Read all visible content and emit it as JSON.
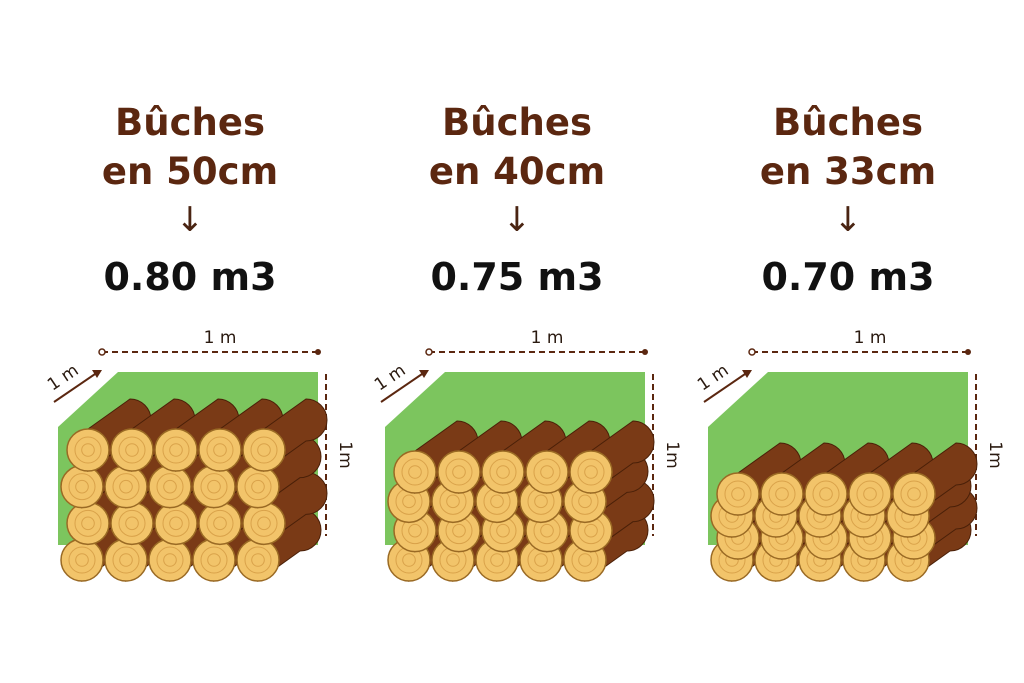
{
  "panels": [
    {
      "title_line1": "Bûches",
      "title_line2": "en 50cm",
      "arrow": "down-arrow-icon",
      "value": "0.80 m3",
      "volume_m3": 0.8,
      "rows": 4,
      "logs_per_row": 5
    },
    {
      "title_line1": "Bûches",
      "title_line2": "en 40cm",
      "arrow": "down-arrow-icon",
      "value": "0.75 m3",
      "volume_m3": 0.75,
      "rows": 4,
      "logs_per_row": 5
    },
    {
      "title_line1": "Bûches",
      "title_line2": "en 33cm",
      "arrow": "down-arrow-icon",
      "value": "0.70 m3",
      "volume_m3": 0.7,
      "rows": 4,
      "logs_per_row": 5
    }
  ],
  "dimensions": {
    "width": "1 m",
    "depth": "1 m",
    "height": "1m"
  },
  "colors": {
    "title": "#5b2710",
    "green": "#7cc55e",
    "bark": "#7a3a16",
    "wood": "#f2c46a",
    "dimension": "#5b2710"
  }
}
